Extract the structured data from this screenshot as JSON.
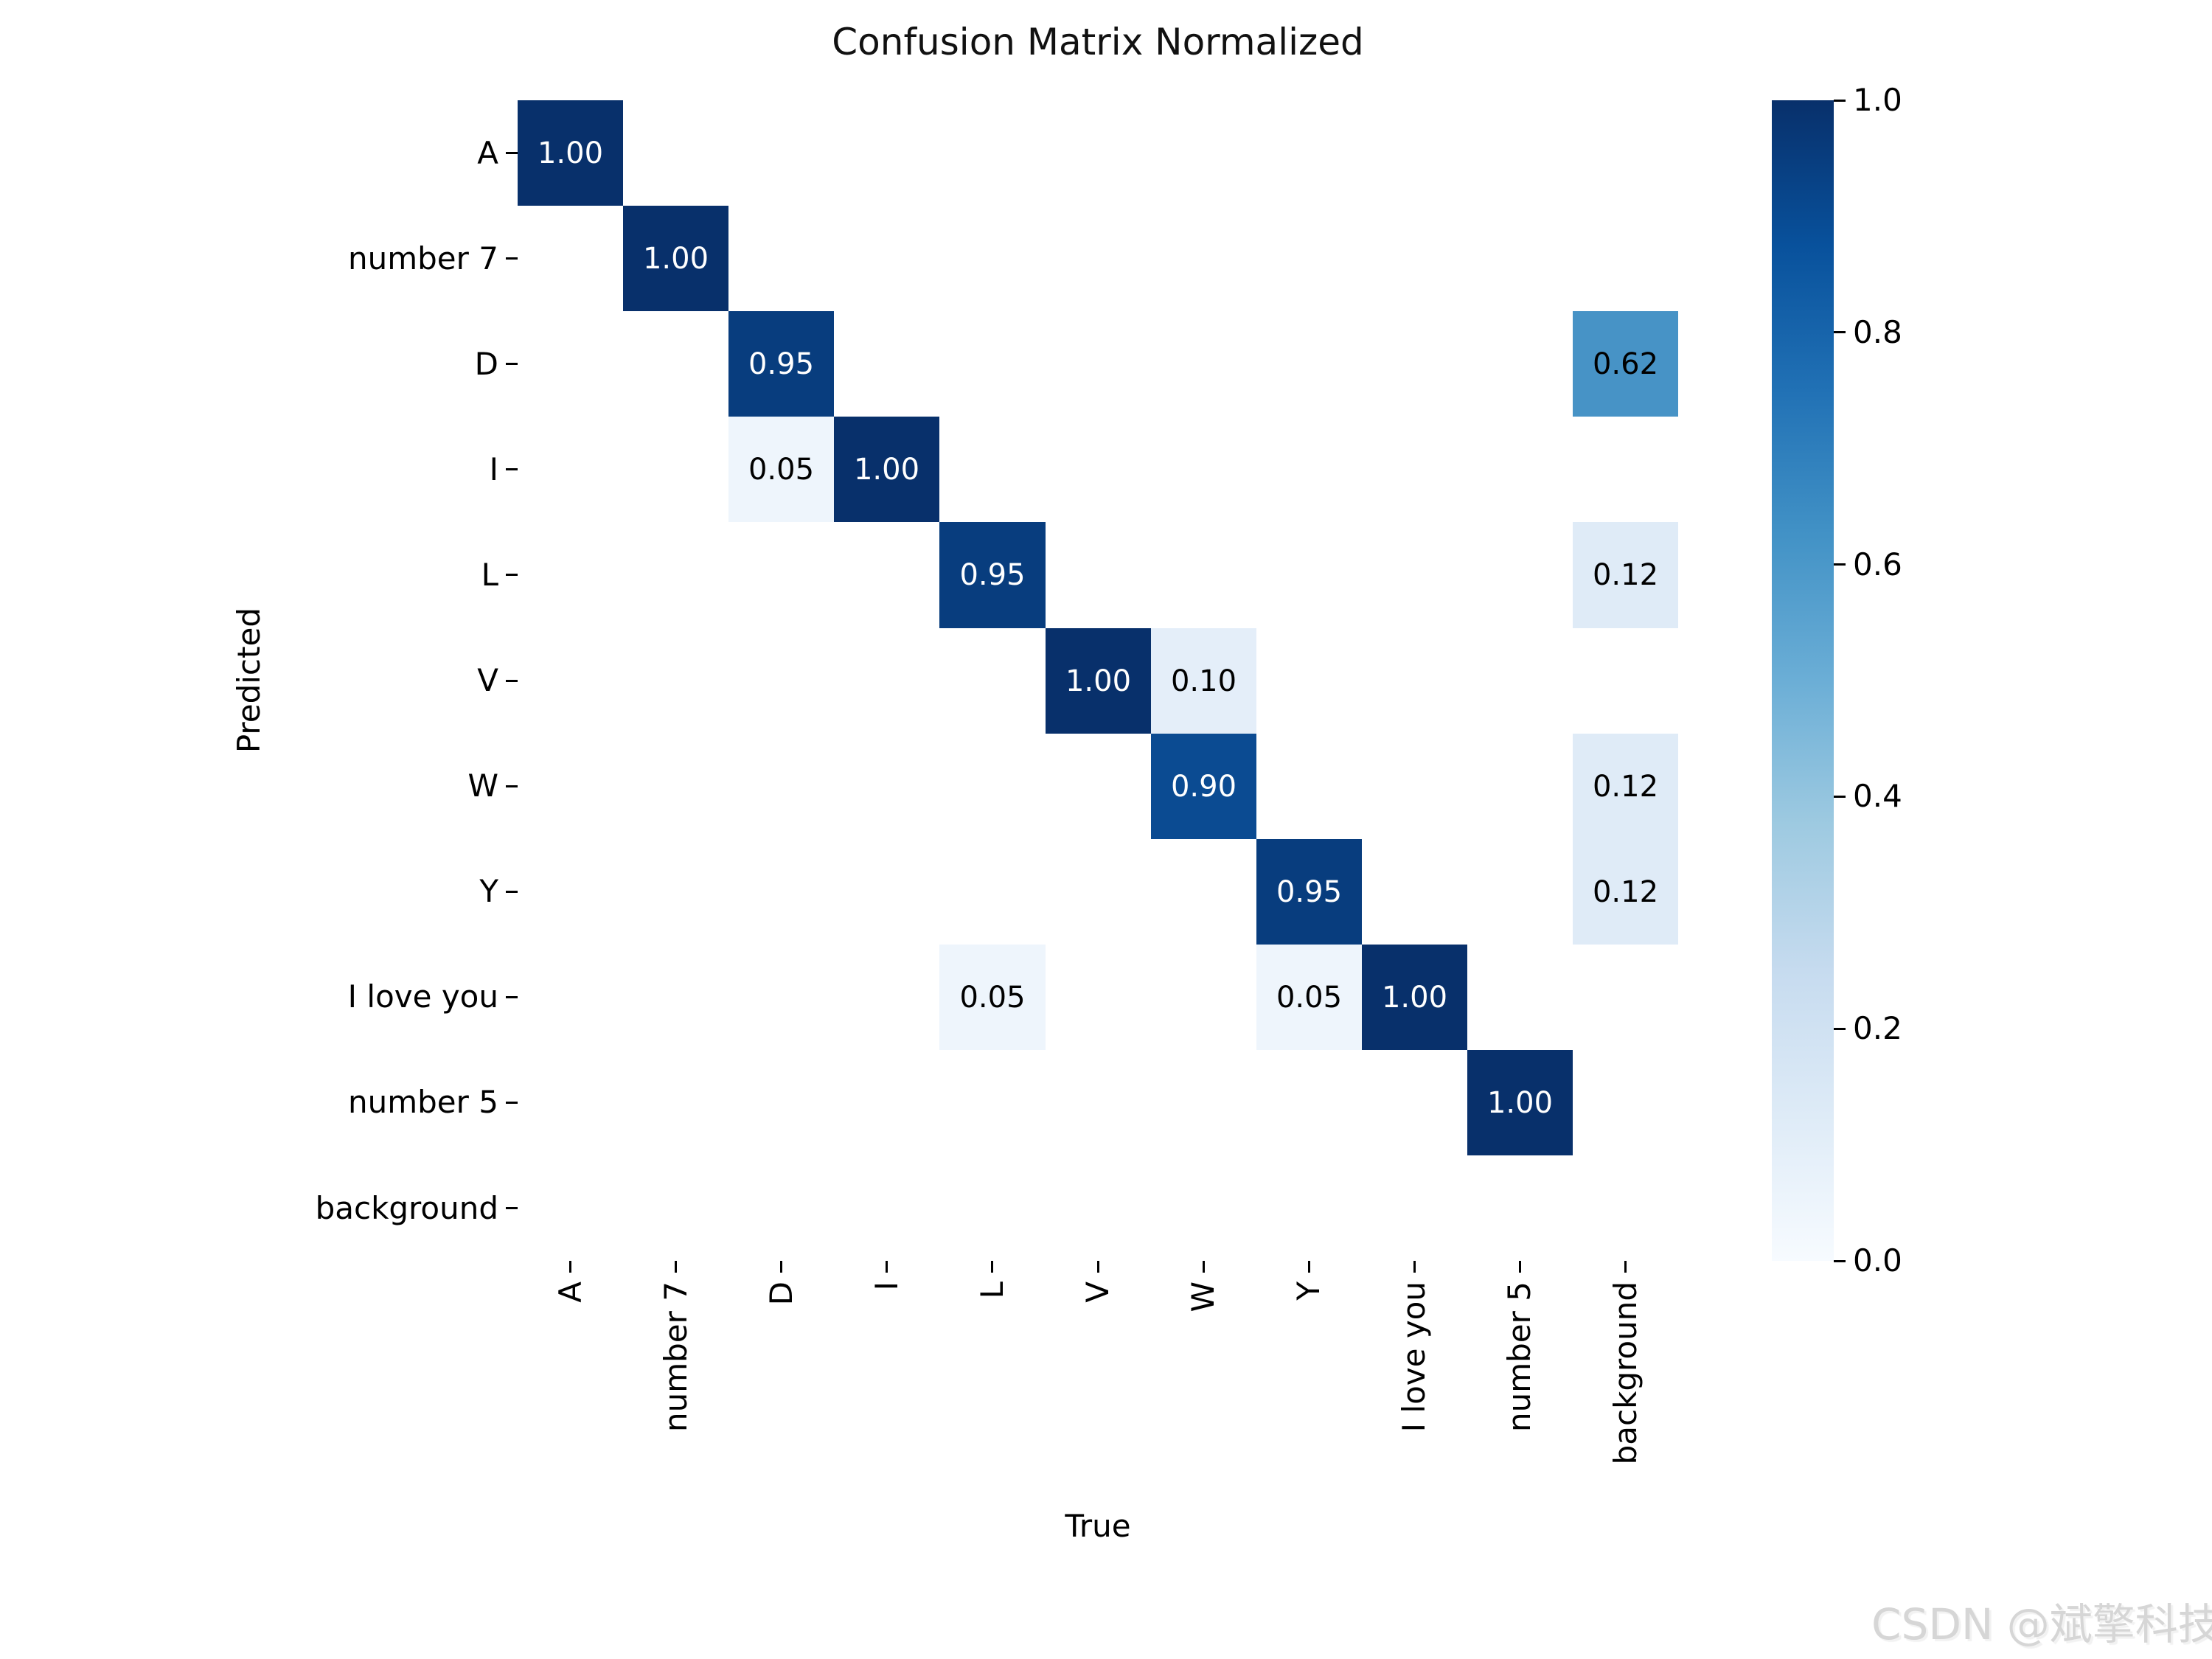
{
  "watermark": "CSDN @斌擎科技",
  "chart_data": {
    "type": "heatmap",
    "title": "Confusion Matrix Normalized",
    "xlabel": "True",
    "ylabel": "Predicted",
    "categories": [
      "A",
      "number 7",
      "D",
      "I",
      "L",
      "V",
      "W",
      "Y",
      "I love you",
      "number 5",
      "background"
    ],
    "x_axis_categories": [
      "A",
      "number 7",
      "D",
      "I",
      "L",
      "V",
      "W",
      "Y",
      "I love you",
      "number 5",
      "background"
    ],
    "y_axis_categories": [
      "A",
      "number 7",
      "D",
      "I",
      "L",
      "V",
      "W",
      "Y",
      "I love you",
      "number 5",
      "background"
    ],
    "value_range": [
      0.0,
      1.0
    ],
    "grid": false,
    "empty_cell_color": "#ffffff",
    "cells": [
      {
        "row": 0,
        "col": 0,
        "value": 1.0,
        "label": "1.00",
        "bg": "#08306b",
        "fg": "#ffffff"
      },
      {
        "row": 1,
        "col": 1,
        "value": 1.0,
        "label": "1.00",
        "bg": "#08306b",
        "fg": "#ffffff"
      },
      {
        "row": 2,
        "col": 2,
        "value": 0.95,
        "label": "0.95",
        "bg": "#083d7e",
        "fg": "#ffffff"
      },
      {
        "row": 2,
        "col": 10,
        "value": 0.62,
        "label": "0.62",
        "bg": "#4793c6",
        "fg": "#000000"
      },
      {
        "row": 3,
        "col": 2,
        "value": 0.05,
        "label": "0.05",
        "bg": "#eef5fc",
        "fg": "#000000"
      },
      {
        "row": 3,
        "col": 3,
        "value": 1.0,
        "label": "1.00",
        "bg": "#08306b",
        "fg": "#ffffff"
      },
      {
        "row": 4,
        "col": 4,
        "value": 0.95,
        "label": "0.95",
        "bg": "#083d7e",
        "fg": "#ffffff"
      },
      {
        "row": 4,
        "col": 10,
        "value": 0.12,
        "label": "0.12",
        "bg": "#dfebf7",
        "fg": "#000000"
      },
      {
        "row": 5,
        "col": 5,
        "value": 1.0,
        "label": "1.00",
        "bg": "#08306b",
        "fg": "#ffffff"
      },
      {
        "row": 5,
        "col": 6,
        "value": 0.1,
        "label": "0.10",
        "bg": "#e4eef9",
        "fg": "#000000"
      },
      {
        "row": 6,
        "col": 6,
        "value": 0.9,
        "label": "0.90",
        "bg": "#0b4b92",
        "fg": "#ffffff"
      },
      {
        "row": 6,
        "col": 10,
        "value": 0.12,
        "label": "0.12",
        "bg": "#dfebf7",
        "fg": "#000000"
      },
      {
        "row": 7,
        "col": 7,
        "value": 0.95,
        "label": "0.95",
        "bg": "#083d7e",
        "fg": "#ffffff"
      },
      {
        "row": 7,
        "col": 10,
        "value": 0.12,
        "label": "0.12",
        "bg": "#dfebf7",
        "fg": "#000000"
      },
      {
        "row": 8,
        "col": 4,
        "value": 0.05,
        "label": "0.05",
        "bg": "#eef5fc",
        "fg": "#000000"
      },
      {
        "row": 8,
        "col": 7,
        "value": 0.05,
        "label": "0.05",
        "bg": "#eef5fc",
        "fg": "#000000"
      },
      {
        "row": 8,
        "col": 8,
        "value": 1.0,
        "label": "1.00",
        "bg": "#08306b",
        "fg": "#ffffff"
      },
      {
        "row": 9,
        "col": 9,
        "value": 1.0,
        "label": "1.00",
        "bg": "#08306b",
        "fg": "#ffffff"
      }
    ],
    "colorbar": {
      "position": "right",
      "tick_labels": [
        "1.0",
        "0.8",
        "0.6",
        "0.4",
        "0.2",
        "0.0"
      ],
      "tick_values": [
        1.0,
        0.8,
        0.6,
        0.4,
        0.2,
        0.0
      ],
      "colormap_name": "Blues",
      "gradient_stops_bottom_to_top": [
        "#f7fbff",
        "#deebf7",
        "#c6dbef",
        "#9ecae1",
        "#6baed6",
        "#4292c6",
        "#2171b5",
        "#08519c",
        "#08306b"
      ]
    }
  }
}
